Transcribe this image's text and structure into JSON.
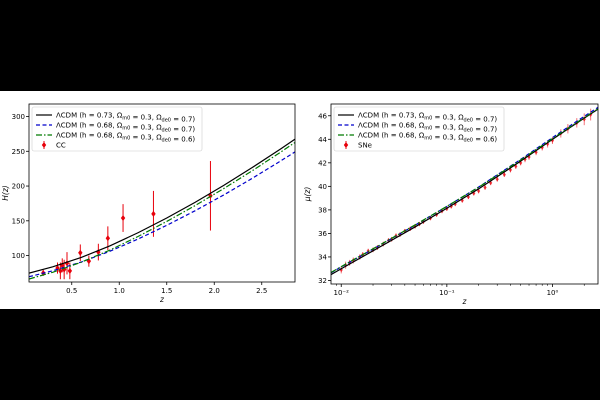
{
  "chart_data": [
    {
      "type": "line",
      "title": "",
      "xlabel": "z",
      "ylabel": "H(z)",
      "xlim": [
        0.05,
        2.85
      ],
      "ylim": [
        62,
        318
      ],
      "xticks": [
        0.5,
        1.0,
        1.5,
        2.0,
        2.5
      ],
      "xtick_labels": [
        "0.5",
        "1.0",
        "1.5",
        "2.0",
        "2.5"
      ],
      "yticks": [
        100,
        150,
        200,
        250,
        300
      ],
      "ytick_labels": [
        "100",
        "150",
        "200",
        "250",
        "300"
      ],
      "legend_position": "top-left",
      "series": [
        {
          "name": "ΛCDM (h = 0.73, Ωm0 = 0.3, Ωde0 = 0.7)",
          "color": "#000000",
          "linestyle": "solid",
          "x": [
            0.05,
            0.3,
            0.6,
            0.9,
            1.2,
            1.5,
            1.8,
            2.1,
            2.4,
            2.7,
            2.85
          ],
          "y": [
            74.7,
            83.8,
            97.3,
            113.9,
            133.0,
            154.0,
            176.7,
            201.0,
            226.6,
            253.5,
            267.4
          ]
        },
        {
          "name": "ΛCDM (h = 0.68, Ωm0 = 0.3, Ωde0 = 0.7)",
          "color": "#0000cc",
          "linestyle": "dashed",
          "x": [
            0.05,
            0.3,
            0.6,
            0.9,
            1.2,
            1.5,
            1.8,
            2.1,
            2.4,
            2.7,
            2.85
          ],
          "y": [
            69.6,
            78.1,
            90.7,
            106.1,
            123.9,
            143.5,
            164.6,
            187.2,
            211.1,
            236.2,
            249.1
          ]
        },
        {
          "name": "ΛCDM (h = 0.68, Ωm0 = 0.3, Ωde0 = 0.6)",
          "color": "#007a00",
          "linestyle": "dashdot",
          "x": [
            0.05,
            0.3,
            0.6,
            0.9,
            1.2,
            1.5,
            1.8,
            2.1,
            2.4,
            2.7,
            2.85
          ],
          "y": [
            66.3,
            76.0,
            90.4,
            107.8,
            127.6,
            149.1,
            172.0,
            196.4,
            222.0,
            248.9,
            262.7
          ]
        },
        {
          "name": "CC",
          "type": "errorbar",
          "color": "#e8000b",
          "points": [
            {
              "x": 0.2,
              "y": 75,
              "err": 4
            },
            {
              "x": 0.35,
              "y": 82,
              "err": 8
            },
            {
              "x": 0.38,
              "y": 78,
              "err": 12
            },
            {
              "x": 0.4,
              "y": 86,
              "err": 10
            },
            {
              "x": 0.42,
              "y": 80,
              "err": 14
            },
            {
              "x": 0.45,
              "y": 89,
              "err": 16
            },
            {
              "x": 0.48,
              "y": 78,
              "err": 12
            },
            {
              "x": 0.59,
              "y": 104,
              "err": 12
            },
            {
              "x": 0.68,
              "y": 92,
              "err": 8
            },
            {
              "x": 0.78,
              "y": 105,
              "err": 12
            },
            {
              "x": 0.88,
              "y": 125,
              "err": 17
            },
            {
              "x": 1.04,
              "y": 154,
              "err": 20
            },
            {
              "x": 1.36,
              "y": 160,
              "err": 33
            },
            {
              "x": 1.96,
              "y": 186,
              "err": 50
            }
          ]
        }
      ]
    },
    {
      "type": "line",
      "title": "",
      "xlabel": "z",
      "ylabel": "μ(z)",
      "xscale": "log",
      "xlim": [
        0.008,
        2.7
      ],
      "ylim": [
        31.7,
        47.0
      ],
      "xticks": [
        0.01,
        0.1,
        1.0
      ],
      "xtick_labels": [
        "10⁻²",
        "10⁻¹",
        "10⁰"
      ],
      "yticks": [
        32,
        34,
        36,
        38,
        40,
        42,
        44,
        46
      ],
      "ytick_labels": [
        "32",
        "34",
        "36",
        "38",
        "40",
        "42",
        "44",
        "46"
      ],
      "legend_position": "top-left",
      "series": [
        {
          "name": "ΛCDM (h = 0.73, Ωm0 = 0.3, Ωde0 = 0.7)",
          "color": "#000000",
          "linestyle": "solid",
          "x": [
            0.008,
            0.01,
            0.02,
            0.05,
            0.1,
            0.2,
            0.5,
            1.0,
            1.5,
            2.0,
            2.7
          ],
          "y": [
            32.5,
            33.0,
            34.52,
            36.55,
            38.14,
            39.79,
            42.14,
            43.99,
            45.06,
            45.8,
            46.56
          ]
        },
        {
          "name": "ΛCDM (h = 0.68, Ωm0 = 0.3, Ωde0 = 0.7)",
          "color": "#0000cc",
          "linestyle": "dashed",
          "x": [
            0.008,
            0.01,
            0.02,
            0.05,
            0.1,
            0.2,
            0.5,
            1.0,
            1.5,
            2.0,
            2.7
          ],
          "y": [
            32.65,
            33.15,
            34.67,
            36.7,
            38.29,
            39.94,
            42.29,
            44.14,
            45.21,
            45.95,
            46.71
          ]
        },
        {
          "name": "ΛCDM (h = 0.68, Ωm0 = 0.3, Ωde0 = 0.6)",
          "color": "#007a00",
          "linestyle": "dashdot",
          "x": [
            0.008,
            0.01,
            0.02,
            0.05,
            0.1,
            0.2,
            0.5,
            1.0,
            1.5,
            2.0,
            2.7
          ],
          "y": [
            32.68,
            33.18,
            34.69,
            36.72,
            38.3,
            39.93,
            42.24,
            44.06,
            45.11,
            45.84,
            46.59
          ]
        },
        {
          "name": "SNe",
          "type": "errorbar",
          "color": "#e8000b",
          "points": [
            {
              "x": 0.01,
              "y": 32.9,
              "err": 0.3
            },
            {
              "x": 0.011,
              "y": 33.3,
              "err": 0.3
            },
            {
              "x": 0.012,
              "y": 33.5,
              "err": 0.25
            },
            {
              "x": 0.013,
              "y": 33.7,
              "err": 0.25
            },
            {
              "x": 0.015,
              "y": 34.0,
              "err": 0.22
            },
            {
              "x": 0.016,
              "y": 34.2,
              "err": 0.22
            },
            {
              "x": 0.018,
              "y": 34.5,
              "err": 0.2
            },
            {
              "x": 0.02,
              "y": 34.6,
              "err": 0.2
            },
            {
              "x": 0.022,
              "y": 34.8,
              "err": 0.2
            },
            {
              "x": 0.025,
              "y": 35.1,
              "err": 0.2
            },
            {
              "x": 0.028,
              "y": 35.4,
              "err": 0.2
            },
            {
              "x": 0.03,
              "y": 35.5,
              "err": 0.2
            },
            {
              "x": 0.033,
              "y": 35.8,
              "err": 0.2
            },
            {
              "x": 0.036,
              "y": 35.9,
              "err": 0.2
            },
            {
              "x": 0.04,
              "y": 36.2,
              "err": 0.18
            },
            {
              "x": 0.045,
              "y": 36.4,
              "err": 0.18
            },
            {
              "x": 0.05,
              "y": 36.6,
              "err": 0.18
            },
            {
              "x": 0.055,
              "y": 36.8,
              "err": 0.18
            },
            {
              "x": 0.06,
              "y": 37.0,
              "err": 0.18
            },
            {
              "x": 0.07,
              "y": 37.3,
              "err": 0.18
            },
            {
              "x": 0.08,
              "y": 37.6,
              "err": 0.18
            },
            {
              "x": 0.09,
              "y": 37.9,
              "err": 0.18
            },
            {
              "x": 0.1,
              "y": 38.1,
              "err": 0.18
            },
            {
              "x": 0.11,
              "y": 38.3,
              "err": 0.18
            },
            {
              "x": 0.12,
              "y": 38.5,
              "err": 0.18
            },
            {
              "x": 0.14,
              "y": 38.8,
              "err": 0.18
            },
            {
              "x": 0.16,
              "y": 39.1,
              "err": 0.18
            },
            {
              "x": 0.18,
              "y": 39.4,
              "err": 0.18
            },
            {
              "x": 0.2,
              "y": 39.6,
              "err": 0.2
            },
            {
              "x": 0.23,
              "y": 39.9,
              "err": 0.2
            },
            {
              "x": 0.26,
              "y": 40.3,
              "err": 0.2
            },
            {
              "x": 0.3,
              "y": 40.6,
              "err": 0.2
            },
            {
              "x": 0.35,
              "y": 41.0,
              "err": 0.2
            },
            {
              "x": 0.4,
              "y": 41.4,
              "err": 0.22
            },
            {
              "x": 0.45,
              "y": 41.7,
              "err": 0.22
            },
            {
              "x": 0.5,
              "y": 42.0,
              "err": 0.22
            },
            {
              "x": 0.55,
              "y": 42.3,
              "err": 0.25
            },
            {
              "x": 0.6,
              "y": 42.5,
              "err": 0.25
            },
            {
              "x": 0.7,
              "y": 42.9,
              "err": 0.25
            },
            {
              "x": 0.8,
              "y": 43.3,
              "err": 0.25
            },
            {
              "x": 0.9,
              "y": 43.6,
              "err": 0.3
            },
            {
              "x": 1.0,
              "y": 43.9,
              "err": 0.3
            },
            {
              "x": 1.2,
              "y": 44.5,
              "err": 0.35
            },
            {
              "x": 1.4,
              "y": 44.9,
              "err": 0.4
            },
            {
              "x": 1.7,
              "y": 45.4,
              "err": 0.4
            },
            {
              "x": 2.0,
              "y": 45.7,
              "err": 0.5
            },
            {
              "x": 2.3,
              "y": 46.1,
              "err": 0.5
            }
          ]
        }
      ]
    }
  ]
}
